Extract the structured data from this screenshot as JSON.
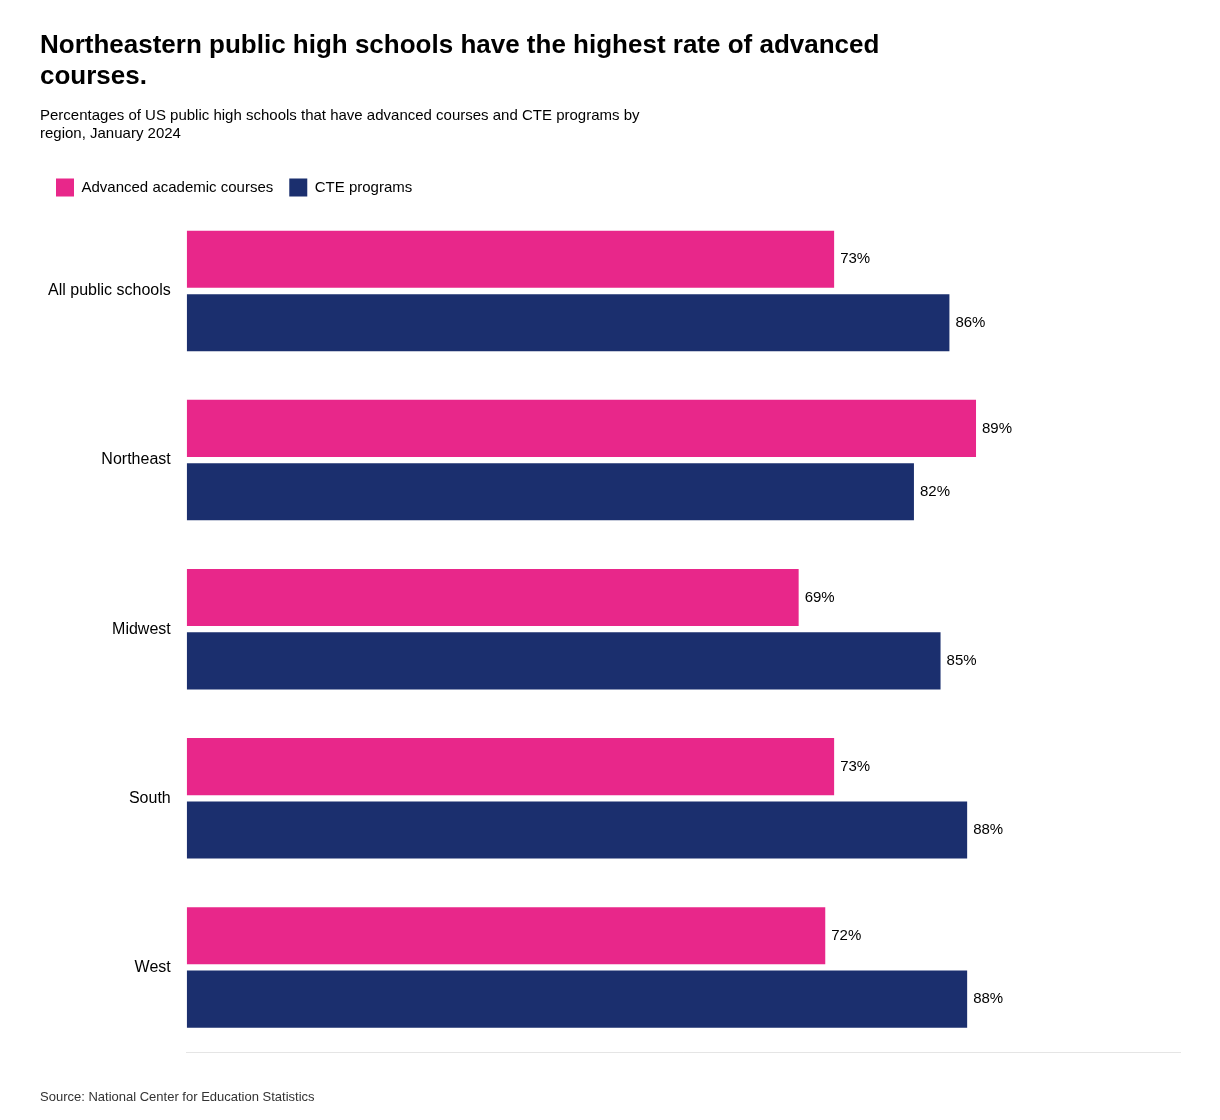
{
  "chart_data": {
    "type": "bar",
    "orientation": "horizontal",
    "title": "Northeastern public high schools have the highest rate of advanced\ncourses.",
    "subtitle": "Percentages of US public high schools that have advanced courses and CTE programs by\nregion, January 2024",
    "annotations": [
      "Source: National Center for Education Statistics"
    ],
    "categories": [
      "All public schools",
      "Northeast",
      "Midwest",
      "South",
      "West"
    ],
    "series": [
      {
        "name": "Advanced academic courses",
        "color": "#E8278A",
        "values": [
          73,
          89,
          69,
          73,
          72
        ],
        "value_labels": [
          "73%",
          "89%",
          "69%",
          "73%",
          "72%"
        ]
      },
      {
        "name": "CTE programs",
        "color": "#1B2F6E",
        "values": [
          86,
          82,
          85,
          88,
          88
        ],
        "value_labels": [
          "86%",
          "82%",
          "85%",
          "88%",
          "88%"
        ]
      }
    ],
    "xlim": [
      0,
      112
    ],
    "grid": false,
    "legend": "upper left",
    "data_labels": true,
    "tick_labels": "y"
  }
}
